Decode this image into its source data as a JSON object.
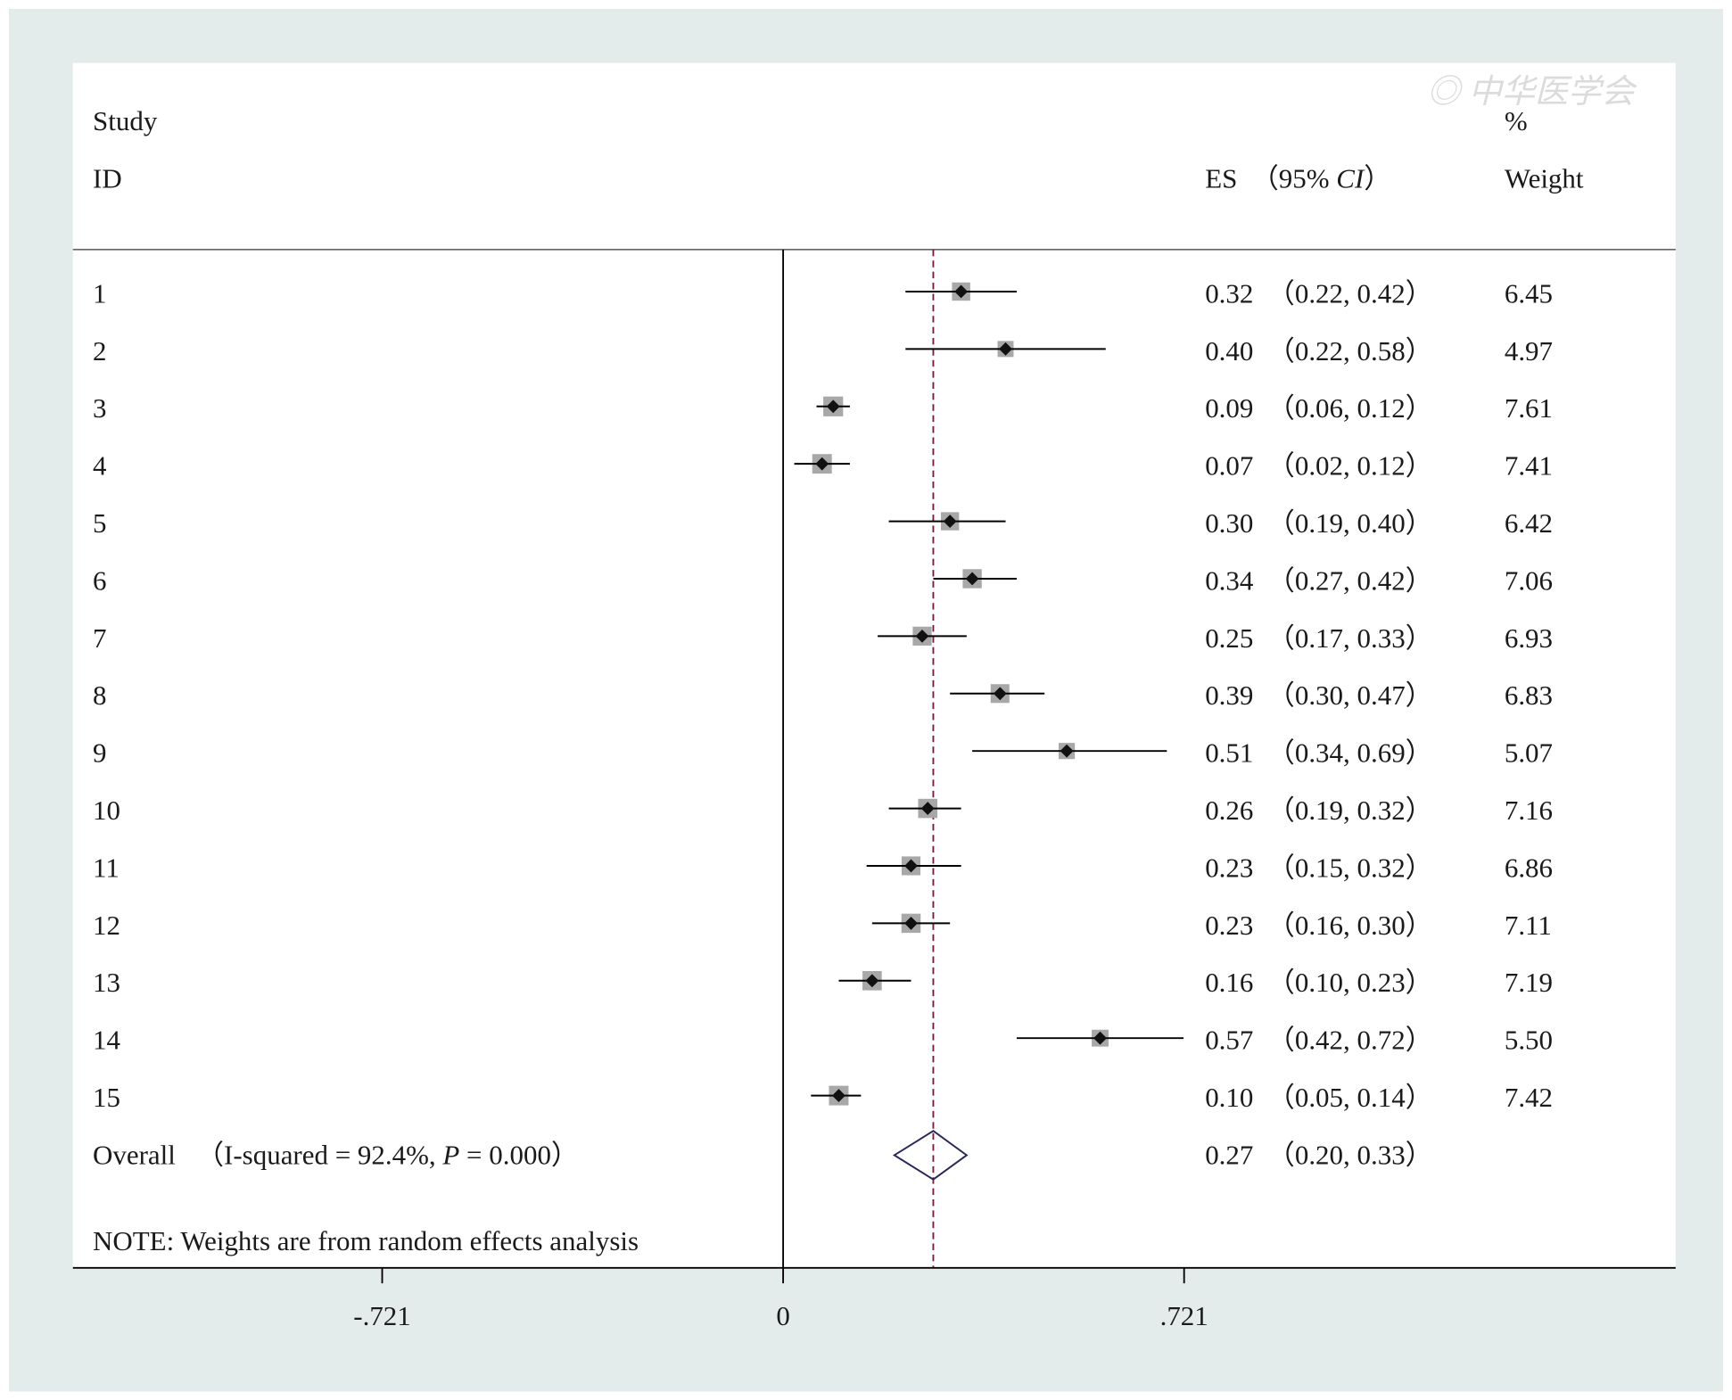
{
  "watermark": "中华医学会",
  "header": {
    "study": "Study",
    "id": "ID",
    "es": "ES  （95% ",
    "ci": "CI",
    "es_close": "）",
    "pct": "%",
    "weight": "Weight"
  },
  "note": "NOTE: Weights are from random effects analysis",
  "overall": {
    "label": "Overall   （I-squared = 92.4%, ",
    "p": "P",
    "p_rest": " = 0.000）",
    "es_text": "0.27  （0.20, 0.33）"
  },
  "chart_data": {
    "type": "forest",
    "xticks": [
      "-.721",
      "0",
      ".721"
    ],
    "xtick_values": [
      -0.721,
      0,
      0.721
    ],
    "null_line": 0,
    "overall_line": 0.27,
    "studies": [
      {
        "id": "1",
        "es": 0.32,
        "lo": 0.22,
        "hi": 0.42,
        "weight": "6.45",
        "text": "0.32  （0.22, 0.42）"
      },
      {
        "id": "2",
        "es": 0.4,
        "lo": 0.22,
        "hi": 0.58,
        "weight": "4.97",
        "text": "0.40  （0.22, 0.58）"
      },
      {
        "id": "3",
        "es": 0.09,
        "lo": 0.06,
        "hi": 0.12,
        "weight": "7.61",
        "text": "0.09  （0.06, 0.12）"
      },
      {
        "id": "4",
        "es": 0.07,
        "lo": 0.02,
        "hi": 0.12,
        "weight": "7.41",
        "text": "0.07  （0.02, 0.12）"
      },
      {
        "id": "5",
        "es": 0.3,
        "lo": 0.19,
        "hi": 0.4,
        "weight": "6.42",
        "text": "0.30  （0.19, 0.40）"
      },
      {
        "id": "6",
        "es": 0.34,
        "lo": 0.27,
        "hi": 0.42,
        "weight": "7.06",
        "text": "0.34  （0.27, 0.42）"
      },
      {
        "id": "7",
        "es": 0.25,
        "lo": 0.17,
        "hi": 0.33,
        "weight": "6.93",
        "text": "0.25  （0.17, 0.33）"
      },
      {
        "id": "8",
        "es": 0.39,
        "lo": 0.3,
        "hi": 0.47,
        "weight": "6.83",
        "text": "0.39  （0.30, 0.47）"
      },
      {
        "id": "9",
        "es": 0.51,
        "lo": 0.34,
        "hi": 0.69,
        "weight": "5.07",
        "text": "0.51  （0.34, 0.69）"
      },
      {
        "id": "10",
        "es": 0.26,
        "lo": 0.19,
        "hi": 0.32,
        "weight": "7.16",
        "text": "0.26  （0.19, 0.32）"
      },
      {
        "id": "11",
        "es": 0.23,
        "lo": 0.15,
        "hi": 0.32,
        "weight": "6.86",
        "text": "0.23  （0.15, 0.32）"
      },
      {
        "id": "12",
        "es": 0.23,
        "lo": 0.16,
        "hi": 0.3,
        "weight": "7.11",
        "text": "0.23  （0.16, 0.30）"
      },
      {
        "id": "13",
        "es": 0.16,
        "lo": 0.1,
        "hi": 0.23,
        "weight": "7.19",
        "text": "0.16  （0.10, 0.23）"
      },
      {
        "id": "14",
        "es": 0.57,
        "lo": 0.42,
        "hi": 0.72,
        "weight": "5.50",
        "text": "0.57  （0.42, 0.72）"
      },
      {
        "id": "15",
        "es": 0.1,
        "lo": 0.05,
        "hi": 0.14,
        "weight": "7.42",
        "text": "0.10  （0.05, 0.14）"
      }
    ],
    "overall": {
      "es": 0.27,
      "lo": 0.2,
      "hi": 0.33
    }
  }
}
